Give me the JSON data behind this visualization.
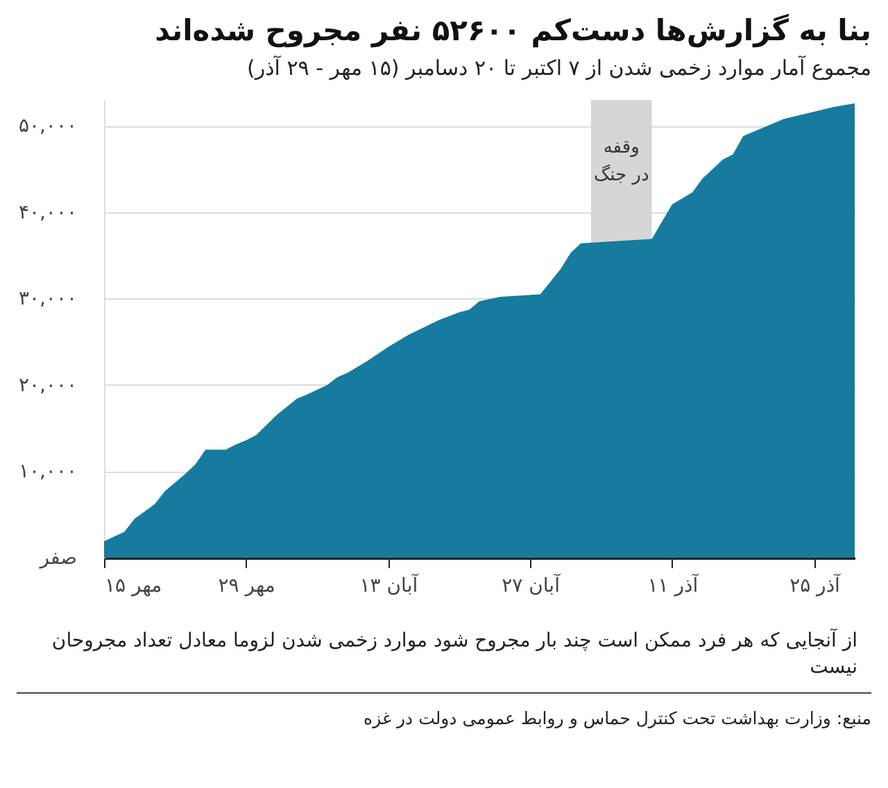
{
  "chart_data": {
    "type": "area",
    "title": "بنا به گزارش‌ها دست‌کم ۵۲۶۰۰ نفر مجروح شده‌اند",
    "subtitle": "مجموع آمار موارد زخمی شدن از ۷ اکتبر تا ۲۰ دسامبر (۱۵ مهر - ۲۹ آذر)",
    "annotations": [
      "از آنجایی که هر فرد ممکن است چند بار مجروح شود موارد زخمی شدن لزوما معادل تعداد مجروحان نیست",
      "منبع: وزارت بهداشت تحت کنترل حماس و روابط عمومی دولت در غزه"
    ],
    "x": [
      "--10-07",
      "--10-09",
      "--10-10",
      "--10-12",
      "--10-13",
      "--10-15",
      "--10-16",
      "--10-17",
      "--10-19",
      "--10-20",
      "--10-21",
      "--10-22",
      "--10-24",
      "--10-26",
      "--10-27",
      "--10-29",
      "--10-30",
      "--10-31",
      "--11-02",
      "--11-04",
      "--11-06",
      "--11-09",
      "--11-11",
      "--11-12",
      "--11-13",
      "--11-15",
      "--11-19",
      "--11-21",
      "--11-22",
      "--11-23",
      "--11-30",
      "--12-02",
      "--12-04",
      "--12-05",
      "--12-07",
      "--12-08",
      "--12-09",
      "--12-13",
      "--12-18",
      "--12-20"
    ],
    "values": [
      1900,
      3000,
      4500,
      6200,
      7700,
      9700,
      10800,
      12500,
      12500,
      13100,
      13600,
      14200,
      16500,
      18400,
      18900,
      20000,
      20900,
      21400,
      22800,
      24400,
      25800,
      27500,
      28400,
      28700,
      29700,
      30200,
      30500,
      33400,
      35300,
      36400,
      36900,
      40900,
      42300,
      43900,
      46100,
      46700,
      48800,
      50800,
      52200,
      52600
    ],
    "color": "#167b9e",
    "xlim": [
      "--10-07",
      "--12-20"
    ],
    "ylim": [
      0,
      53000
    ],
    "xticks": [
      {
        "value": "--10-07",
        "label": "۱۵ مهر"
      },
      {
        "value": "--10-21",
        "label": "۲۹ مهر"
      },
      {
        "value": "--11-04",
        "label": "۱۳ آبان"
      },
      {
        "value": "--11-18",
        "label": "۲۷ آبان"
      },
      {
        "value": "--12-02",
        "label": "۱۱ آذر"
      },
      {
        "value": "--12-16",
        "label": "۲۵ آذر"
      }
    ],
    "yticks": [
      {
        "value": 0,
        "label": "صفر"
      },
      {
        "value": 10000,
        "label": "۱۰,۰۰۰"
      },
      {
        "value": 20000,
        "label": "۲۰,۰۰۰"
      },
      {
        "value": 30000,
        "label": "۳۰,۰۰۰"
      },
      {
        "value": 40000,
        "label": "۴۰,۰۰۰"
      },
      {
        "value": 50000,
        "label": "۵۰,۰۰۰"
      }
    ],
    "grid": "y",
    "bands": [
      {
        "axis": "x",
        "from": "--11-24",
        "to": "--11-30",
        "label": "وقفه در جنگ",
        "color": "#d6d6d6"
      }
    ]
  }
}
